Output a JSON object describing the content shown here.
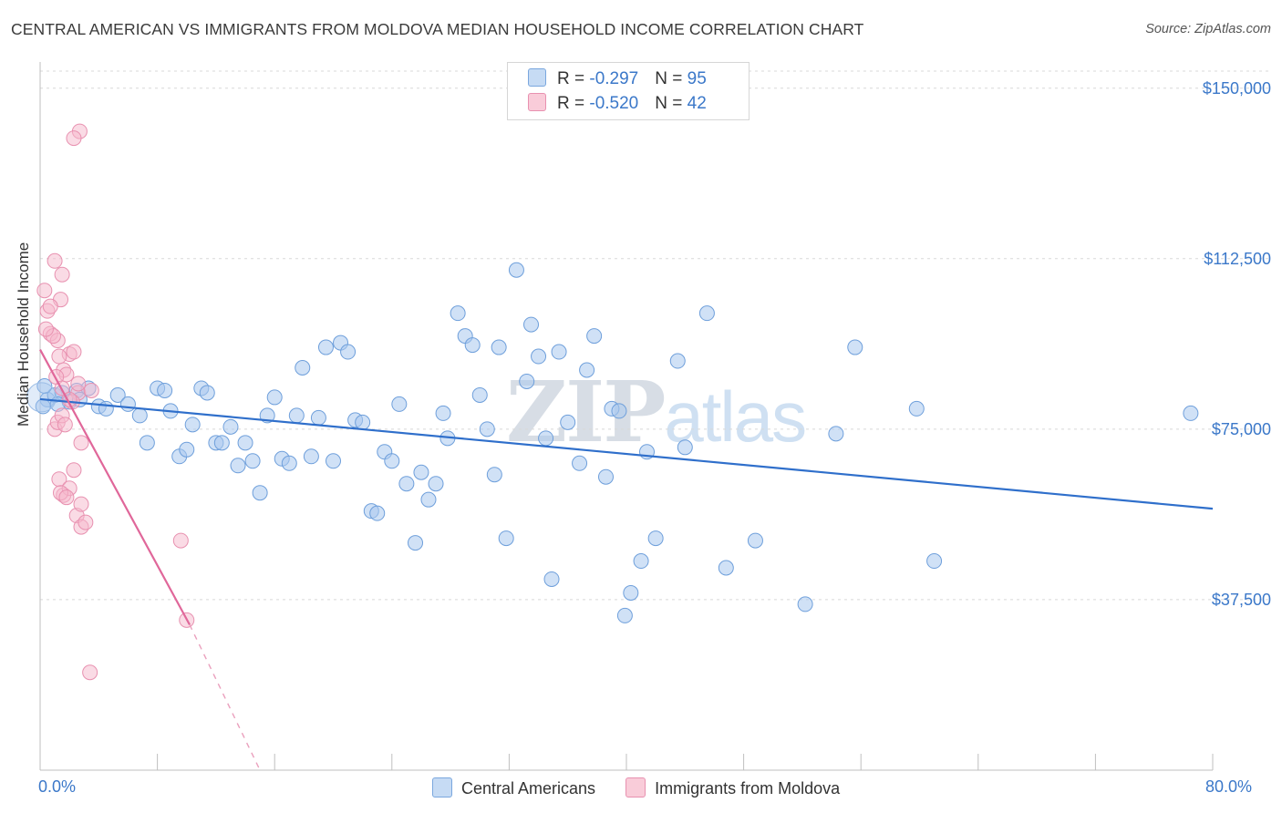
{
  "title": "CENTRAL AMERICAN VS IMMIGRANTS FROM MOLDOVA MEDIAN HOUSEHOLD INCOME CORRELATION CHART",
  "source": "Source: ZipAtlas.com",
  "watermark": {
    "zip": "ZIP",
    "atlas": "atlas"
  },
  "colors": {
    "blue": "#3b78c9",
    "blue_fill": "#a9c9ef",
    "pink": "#e07aa0",
    "pink_fill": "#f5b8cc"
  },
  "legend": {
    "rows": [
      {
        "r_label": "R = ",
        "r_value": "-0.297",
        "n_label": "N = ",
        "n_value": "95"
      },
      {
        "r_label": "R = ",
        "r_value": "-0.520",
        "n_label": "N = ",
        "n_value": "42"
      }
    ]
  },
  "bottom_legend": {
    "series1": "Central Americans",
    "series2": "Immigrants from Moldova"
  },
  "chart_data": {
    "type": "scatter",
    "title": "CENTRAL AMERICAN VS IMMIGRANTS FROM MOLDOVA MEDIAN HOUSEHOLD INCOME CORRELATION CHART",
    "xlabel_min": "0.0%",
    "xlabel_max": "80.0%",
    "ylabel": "Median Household Income",
    "xlim": [
      0,
      80
    ],
    "ylim": [
      0,
      153750
    ],
    "yticks": [
      37500,
      75000,
      112500,
      150000
    ],
    "ytick_labels": [
      "$37,500",
      "$75,000",
      "$112,500",
      "$150,000"
    ],
    "series": [
      {
        "name": "Central Americans",
        "trend": {
          "x0": 0,
          "y0": 81600,
          "x1": 80,
          "y1": 57500
        },
        "points": [
          [
            0.5,
            81500
          ],
          [
            1.0,
            82500
          ],
          [
            1.5,
            83000
          ],
          [
            2.0,
            81000
          ],
          [
            2.5,
            83500
          ],
          [
            3.3,
            84000
          ],
          [
            4.0,
            80000
          ],
          [
            4.5,
            79500
          ],
          [
            5.3,
            82500
          ],
          [
            6.0,
            80500
          ],
          [
            6.8,
            78000
          ],
          [
            7.3,
            72000
          ],
          [
            8.0,
            84000
          ],
          [
            8.5,
            83500
          ],
          [
            8.9,
            79000
          ],
          [
            9.5,
            69000
          ],
          [
            10.0,
            70500
          ],
          [
            10.4,
            76000
          ],
          [
            11.0,
            84000
          ],
          [
            11.4,
            83000
          ],
          [
            12.0,
            72000
          ],
          [
            12.4,
            72000
          ],
          [
            13.0,
            75500
          ],
          [
            13.5,
            67000
          ],
          [
            14.0,
            72000
          ],
          [
            14.5,
            68000
          ],
          [
            15.0,
            61000
          ],
          [
            15.5,
            78000
          ],
          [
            16.0,
            82000
          ],
          [
            16.5,
            68500
          ],
          [
            17.0,
            67500
          ],
          [
            17.5,
            78000
          ],
          [
            17.9,
            88500
          ],
          [
            18.5,
            69000
          ],
          [
            19.0,
            77500
          ],
          [
            19.5,
            93000
          ],
          [
            20.0,
            68000
          ],
          [
            20.5,
            94000
          ],
          [
            21.0,
            92000
          ],
          [
            21.5,
            77000
          ],
          [
            22.0,
            76500
          ],
          [
            22.6,
            57000
          ],
          [
            23.0,
            56500
          ],
          [
            23.5,
            70000
          ],
          [
            24.0,
            68000
          ],
          [
            24.5,
            80500
          ],
          [
            25.0,
            63000
          ],
          [
            25.6,
            50000
          ],
          [
            26.0,
            65500
          ],
          [
            26.5,
            59500
          ],
          [
            27.0,
            63000
          ],
          [
            27.5,
            78500
          ],
          [
            27.8,
            73000
          ],
          [
            28.5,
            100500
          ],
          [
            29.0,
            95500
          ],
          [
            29.5,
            93500
          ],
          [
            30.0,
            82500
          ],
          [
            30.5,
            75000
          ],
          [
            31.0,
            65000
          ],
          [
            31.3,
            93000
          ],
          [
            31.8,
            51000
          ],
          [
            32.5,
            110000
          ],
          [
            33.2,
            85500
          ],
          [
            33.5,
            98000
          ],
          [
            34.0,
            91000
          ],
          [
            34.5,
            73000
          ],
          [
            34.9,
            42000
          ],
          [
            35.4,
            92000
          ],
          [
            36.0,
            76500
          ],
          [
            36.8,
            67500
          ],
          [
            37.3,
            88000
          ],
          [
            37.8,
            95500
          ],
          [
            38.6,
            64500
          ],
          [
            39.0,
            79500
          ],
          [
            39.5,
            79000
          ],
          [
            39.9,
            34000
          ],
          [
            40.3,
            39000
          ],
          [
            41.0,
            46000
          ],
          [
            41.4,
            70000
          ],
          [
            42.0,
            51000
          ],
          [
            43.5,
            90000
          ],
          [
            44.0,
            71000
          ],
          [
            45.5,
            100500
          ],
          [
            46.8,
            44500
          ],
          [
            48.8,
            50500
          ],
          [
            52.2,
            36500
          ],
          [
            55.6,
            93000
          ],
          [
            59.8,
            79500
          ],
          [
            61.0,
            46000
          ],
          [
            78.5,
            78500
          ],
          [
            0.2,
            80000
          ],
          [
            0.3,
            84500
          ],
          [
            1.2,
            80500
          ],
          [
            2.7,
            81500
          ],
          [
            54.3,
            74000
          ]
        ]
      },
      {
        "name": "Immigrants from Moldova",
        "trend": {
          "x0": 0,
          "y0": 92500,
          "x1": 10.2,
          "y1": 32000,
          "x_dash_end": 15.0,
          "y_dash_end": 0
        },
        "points": [
          [
            0.3,
            105500
          ],
          [
            0.5,
            101000
          ],
          [
            0.7,
            96000
          ],
          [
            1.0,
            112000
          ],
          [
            1.2,
            94500
          ],
          [
            1.4,
            103500
          ],
          [
            1.5,
            109000
          ],
          [
            1.6,
            88000
          ],
          [
            1.8,
            87000
          ],
          [
            2.0,
            91500
          ],
          [
            2.3,
            92000
          ],
          [
            2.6,
            83000
          ],
          [
            1.0,
            75000
          ],
          [
            1.2,
            76500
          ],
          [
            1.5,
            78000
          ],
          [
            1.7,
            76000
          ],
          [
            1.3,
            64000
          ],
          [
            1.6,
            60500
          ],
          [
            2.0,
            62000
          ],
          [
            2.3,
            66000
          ],
          [
            2.8,
            72000
          ],
          [
            2.7,
            140500
          ],
          [
            2.3,
            139000
          ],
          [
            1.4,
            61000
          ],
          [
            1.8,
            60000
          ],
          [
            2.5,
            56000
          ],
          [
            2.8,
            58500
          ],
          [
            2.8,
            53500
          ],
          [
            3.1,
            54500
          ],
          [
            9.6,
            50500
          ],
          [
            10.0,
            33000
          ],
          [
            3.4,
            21500
          ],
          [
            0.7,
            102000
          ],
          [
            0.9,
            95500
          ],
          [
            2.2,
            81000
          ],
          [
            1.1,
            86500
          ],
          [
            1.5,
            84000
          ],
          [
            0.4,
            97000
          ],
          [
            2.0,
            81500
          ],
          [
            2.6,
            85000
          ],
          [
            1.3,
            91000
          ],
          [
            3.5,
            83500
          ]
        ]
      }
    ]
  }
}
